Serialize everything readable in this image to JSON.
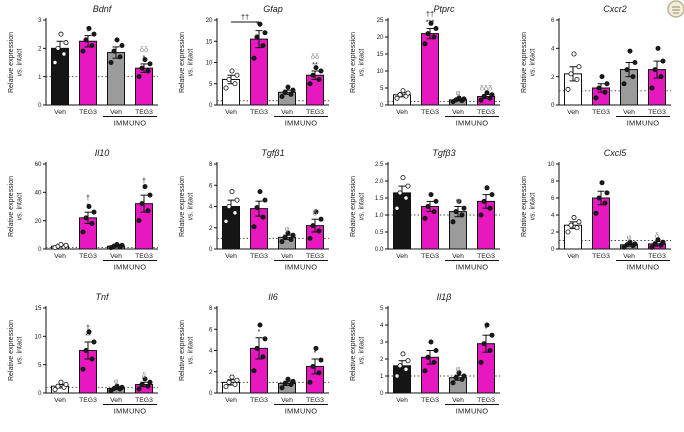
{
  "colors": {
    "magenta": "#e718c0",
    "black": "#151515",
    "gray": "#9b9b9b",
    "white": "#ffffff",
    "axis": "#111111",
    "ann_gray": "#8e8e8e",
    "ann_black": "#1a1a1a",
    "baseline": "#444444"
  },
  "labels": {
    "ylabel_line1": "Relative expression",
    "ylabel_vs": "vs.",
    "ylabel_rest": " intact",
    "categories": [
      "Veh",
      "TEG3",
      "Veh",
      "TEG3"
    ],
    "group_label": "IMMUNO"
  },
  "icons": {
    "corner_badge": "circular-stamp-icon"
  },
  "chart_data": [
    {
      "type": "bar",
      "title": "Bdnf",
      "ylim": [
        0,
        3
      ],
      "yticks": [
        0,
        1,
        2,
        3
      ],
      "ytick_labels": [
        "0",
        "1",
        "2",
        "3"
      ],
      "values": [
        2.0,
        2.25,
        1.85,
        1.3
      ],
      "errors": [
        0.25,
        0.2,
        0.2,
        0.15
      ],
      "bar_colors": [
        "black",
        "magenta",
        "gray",
        "magenta"
      ],
      "points": [
        [
          1.5,
          1.8,
          2.0,
          2.2,
          2.5
        ],
        [
          1.9,
          2.1,
          2.3,
          2.5,
          2.7
        ],
        [
          1.5,
          1.7,
          1.9,
          2.1,
          2.3
        ],
        [
          1.0,
          1.2,
          1.3,
          1.45,
          1.6
        ]
      ],
      "annotations": [
        {
          "bar": 1,
          "lines": [
            "†"
          ]
        },
        {
          "bar": 3,
          "lines": [
            "δδ",
            "*"
          ]
        }
      ],
      "baseline": 1
    },
    {
      "type": "bar",
      "title": "Gfap",
      "ylim": [
        0,
        20
      ],
      "yticks": [
        0,
        5,
        10,
        15,
        20
      ],
      "ytick_labels": [
        "0",
        "5",
        "10",
        "15",
        "20"
      ],
      "values": [
        6,
        15.5,
        3,
        7
      ],
      "errors": [
        1,
        2,
        0.5,
        1
      ],
      "bar_colors": [
        "white",
        "magenta",
        "gray",
        "magenta"
      ],
      "points": [
        [
          4,
          5,
          6,
          7,
          8
        ],
        [
          11,
          14,
          16,
          17,
          19
        ],
        [
          2,
          2.5,
          3,
          3.5,
          4.2
        ],
        [
          5,
          6,
          7,
          8,
          8.8
        ]
      ],
      "annotations": [
        {
          "bar": 1,
          "lines": [
            "**"
          ]
        },
        {
          "bar": 3,
          "lines": [
            "δδ",
            "**"
          ]
        }
      ],
      "bracket": {
        "from": 0,
        "to": 1,
        "label": "††"
      },
      "baseline": 1
    },
    {
      "type": "bar",
      "title": "Ptprc",
      "ylim": [
        0,
        25
      ],
      "yticks": [
        0,
        5,
        10,
        15,
        20,
        25
      ],
      "ytick_labels": [
        "0",
        "5",
        "10",
        "15",
        "20",
        "25"
      ],
      "values": [
        3,
        21,
        1.5,
        2.5
      ],
      "errors": [
        0.6,
        1.5,
        0.3,
        0.6
      ],
      "bar_colors": [
        "white",
        "magenta",
        "gray",
        "magenta"
      ],
      "points": [
        [
          2,
          2.6,
          3,
          3.5,
          4.2
        ],
        [
          18,
          20,
          21,
          22.5,
          24
        ],
        [
          1,
          1.3,
          1.5,
          1.8,
          2.1
        ],
        [
          1.4,
          2,
          2.5,
          3,
          3.6
        ]
      ],
      "annotations": [
        {
          "bar": 1,
          "lines": [
            "††",
            "***"
          ]
        },
        {
          "bar": 2,
          "lines": [
            "φ"
          ]
        },
        {
          "bar": 3,
          "lines": [
            "δδδ"
          ]
        }
      ],
      "baseline": 1
    },
    {
      "type": "bar",
      "title": "Cxcr2",
      "ylim": [
        0,
        6
      ],
      "yticks": [
        0,
        2,
        4,
        6
      ],
      "ytick_labels": [
        "0",
        "2",
        "4",
        "6"
      ],
      "values": [
        2.2,
        1.2,
        2.5,
        2.5
      ],
      "errors": [
        0.5,
        0.3,
        0.5,
        0.6
      ],
      "bar_colors": [
        "white",
        "magenta",
        "gray",
        "magenta"
      ],
      "points": [
        [
          1.1,
          1.8,
          2.2,
          2.7,
          3.6
        ],
        [
          0.5,
          0.9,
          1.2,
          1.5,
          2.0
        ],
        [
          1.5,
          2.0,
          2.5,
          3.0,
          3.8
        ],
        [
          1.2,
          2.0,
          2.5,
          3.1,
          4.0
        ]
      ],
      "annotations": [],
      "baseline": 1
    },
    {
      "type": "bar",
      "title": "Il10",
      "ylim": [
        0,
        60
      ],
      "yticks": [
        0,
        20,
        40,
        60
      ],
      "ytick_labels": [
        "0",
        "20",
        "40",
        "60"
      ],
      "values": [
        2,
        22,
        2,
        32
      ],
      "errors": [
        0.6,
        4,
        0.6,
        6
      ],
      "bar_colors": [
        "white",
        "magenta",
        "gray",
        "magenta"
      ],
      "points": [
        [
          1,
          1.5,
          2,
          2.6,
          3.2
        ],
        [
          12,
          18,
          22,
          26,
          30
        ],
        [
          1,
          1.5,
          2,
          2.6,
          3.2
        ],
        [
          20,
          27,
          32,
          38,
          44
        ]
      ],
      "annotations": [
        {
          "bar": 1,
          "lines": [
            "†",
            "*"
          ]
        },
        {
          "bar": 3,
          "lines": [
            "†",
            "*"
          ]
        }
      ],
      "baseline": 1
    },
    {
      "type": "bar",
      "title": "Tgfβ1",
      "ylim": [
        0,
        8
      ],
      "yticks": [
        0,
        2,
        4,
        6,
        8
      ],
      "ytick_labels": [
        "0",
        "2",
        "4",
        "6",
        "8"
      ],
      "values": [
        4,
        3.8,
        1.1,
        2.2
      ],
      "errors": [
        0.6,
        0.7,
        0.2,
        0.6
      ],
      "bar_colors": [
        "black",
        "magenta",
        "gray",
        "magenta"
      ],
      "points": [
        [
          2.6,
          3.4,
          4.0,
          4.6,
          5.4
        ],
        [
          2.1,
          3.0,
          3.9,
          4.6,
          5.4
        ],
        [
          0.7,
          0.9,
          1.1,
          1.3,
          1.5
        ],
        [
          1.0,
          1.7,
          2.2,
          2.8,
          3.5
        ]
      ],
      "annotations": [
        {
          "bar": 2,
          "lines": [
            "φ"
          ]
        },
        {
          "bar": 3,
          "lines": [
            "δ"
          ]
        }
      ],
      "baseline": 1
    },
    {
      "type": "bar",
      "title": "Tgfβ3",
      "ylim": [
        0,
        2.5
      ],
      "yticks": [
        0,
        0.5,
        1,
        1.5,
        2,
        2.5
      ],
      "ytick_labels": [
        "0.0",
        "0.5",
        "1.0",
        "1.5",
        "2.0",
        "2.5"
      ],
      "values": [
        1.65,
        1.25,
        1.1,
        1.4
      ],
      "errors": [
        0.2,
        0.15,
        0.15,
        0.2
      ],
      "bar_colors": [
        "black",
        "magenta",
        "gray",
        "magenta"
      ],
      "points": [
        [
          1.2,
          1.5,
          1.65,
          1.85,
          2.1
        ],
        [
          0.9,
          1.1,
          1.25,
          1.4,
          1.6
        ],
        [
          0.8,
          1.0,
          1.1,
          1.2,
          1.4
        ],
        [
          1.0,
          1.2,
          1.4,
          1.6,
          1.8
        ]
      ],
      "annotations": [
        {
          "bar": 2,
          "lines": [
            "φ"
          ]
        }
      ],
      "baseline": 1
    },
    {
      "type": "bar",
      "title": "Cxcl5",
      "ylim": [
        0,
        10
      ],
      "yticks": [
        0,
        2,
        4,
        6,
        8,
        10
      ],
      "ytick_labels": [
        "0",
        "2",
        "4",
        "6",
        "8",
        "10"
      ],
      "values": [
        2.8,
        6,
        0.5,
        0.6
      ],
      "errors": [
        0.4,
        0.8,
        0.15,
        0.25
      ],
      "bar_colors": [
        "white",
        "magenta",
        "gray",
        "magenta"
      ],
      "points": [
        [
          2.0,
          2.5,
          2.8,
          3.2,
          3.7
        ],
        [
          4.2,
          5.4,
          6.0,
          6.6,
          7.8
        ],
        [
          0.2,
          0.4,
          0.5,
          0.6,
          0.8
        ],
        [
          0.2,
          0.45,
          0.6,
          0.8,
          1.1
        ]
      ],
      "annotations": [
        {
          "bar": 2,
          "lines": [
            "φ"
          ]
        },
        {
          "bar": 3,
          "lines": [
            "δ"
          ]
        }
      ],
      "baseline": 1
    },
    {
      "type": "bar",
      "title": "Tnf",
      "ylim": [
        0,
        15
      ],
      "yticks": [
        0,
        5,
        10,
        15
      ],
      "ytick_labels": [
        "0",
        "5",
        "10",
        "15"
      ],
      "values": [
        1.2,
        7.5,
        0.8,
        1.5
      ],
      "errors": [
        0.3,
        1.5,
        0.2,
        0.4
      ],
      "bar_colors": [
        "white",
        "magenta",
        "gray",
        "magenta"
      ],
      "points": [
        [
          0.6,
          1.0,
          1.2,
          1.5,
          1.9
        ],
        [
          4.2,
          6.0,
          7.5,
          9.0,
          10.8
        ],
        [
          0.4,
          0.7,
          0.8,
          1.0,
          1.2
        ],
        [
          0.7,
          1.2,
          1.5,
          1.9,
          2.5
        ]
      ],
      "annotations": [
        {
          "bar": 1,
          "lines": [
            "†",
            "**"
          ]
        },
        {
          "bar": 2,
          "lines": [
            "φ"
          ]
        },
        {
          "bar": 3,
          "lines": [
            "δ"
          ]
        }
      ],
      "baseline": 1
    },
    {
      "type": "bar",
      "title": "Il6",
      "ylim": [
        0,
        8
      ],
      "yticks": [
        0,
        2,
        4,
        6,
        8
      ],
      "ytick_labels": [
        "0",
        "2",
        "4",
        "6",
        "8"
      ],
      "values": [
        1.0,
        4.2,
        0.9,
        2.5
      ],
      "errors": [
        0.25,
        1.0,
        0.2,
        0.7
      ],
      "bar_colors": [
        "white",
        "magenta",
        "gray",
        "magenta"
      ],
      "points": [
        [
          0.6,
          0.8,
          1.0,
          1.2,
          1.5
        ],
        [
          2.1,
          3.4,
          4.2,
          5.1,
          6.4
        ],
        [
          0.5,
          0.8,
          0.9,
          1.1,
          1.3
        ],
        [
          1.0,
          1.9,
          2.5,
          3.1,
          4.2
        ]
      ],
      "annotations": [
        {
          "bar": 1,
          "lines": [
            "*"
          ]
        },
        {
          "bar": 3,
          "lines": [
            "*"
          ]
        }
      ],
      "baseline": 1
    },
    {
      "type": "bar",
      "title": "Il1β",
      "ylim": [
        0,
        5
      ],
      "yticks": [
        0,
        1,
        2,
        3,
        4,
        5
      ],
      "ytick_labels": [
        "0",
        "1",
        "2",
        "3",
        "4",
        "5"
      ],
      "values": [
        1.6,
        2.1,
        0.9,
        2.9
      ],
      "errors": [
        0.3,
        0.4,
        0.15,
        0.5
      ],
      "bar_colors": [
        "black",
        "magenta",
        "gray",
        "magenta"
      ],
      "points": [
        [
          1.0,
          1.4,
          1.6,
          1.9,
          2.3
        ],
        [
          1.3,
          1.8,
          2.1,
          2.5,
          3.0
        ],
        [
          0.6,
          0.8,
          0.9,
          1.0,
          1.2
        ],
        [
          1.8,
          2.5,
          2.9,
          3.4,
          4.0
        ]
      ],
      "annotations": [
        {
          "bar": 2,
          "lines": [
            "φ"
          ]
        },
        {
          "bar": 3,
          "lines": [
            "*"
          ]
        }
      ],
      "baseline": 1
    }
  ]
}
